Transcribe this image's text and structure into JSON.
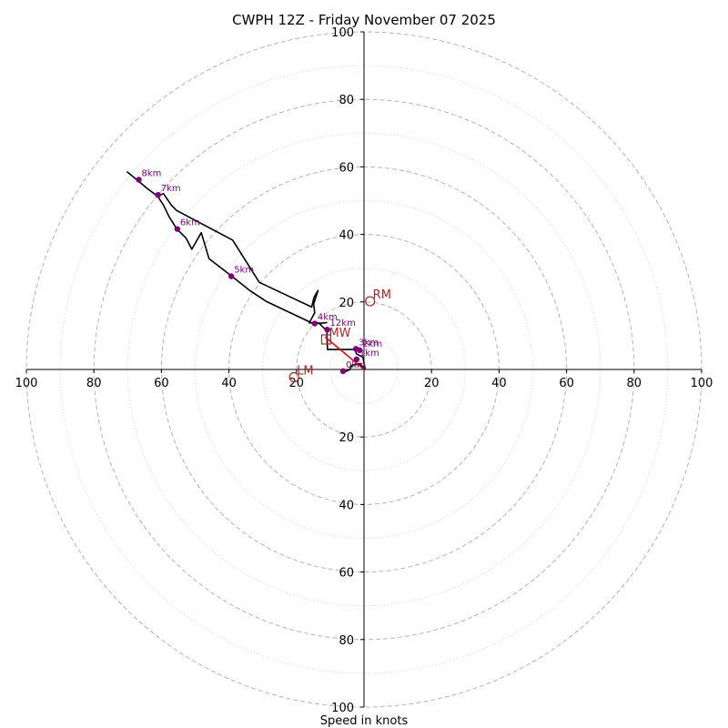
{
  "chart_data": {
    "type": "hodograph",
    "title": "CWPH 12Z - Friday November 07 2025",
    "xlabel": "Speed in knots",
    "units": "knots",
    "range": [
      -100,
      100
    ],
    "major_rings": [
      20,
      40,
      60,
      80,
      100
    ],
    "minor_rings": [
      10,
      30,
      50,
      70,
      90
    ],
    "x_ticks": [
      {
        "value": -100,
        "label": "100"
      },
      {
        "value": -80,
        "label": "80"
      },
      {
        "value": -60,
        "label": "60"
      },
      {
        "value": -40,
        "label": "40"
      },
      {
        "value": -20,
        "label": "20"
      },
      {
        "value": 20,
        "label": "20"
      },
      {
        "value": 40,
        "label": "40"
      },
      {
        "value": 60,
        "label": "60"
      },
      {
        "value": 80,
        "label": "80"
      },
      {
        "value": 100,
        "label": "100"
      }
    ],
    "y_ticks": [
      {
        "value": 100,
        "label": "100"
      },
      {
        "value": 80,
        "label": "80"
      },
      {
        "value": 60,
        "label": "60"
      },
      {
        "value": 40,
        "label": "40"
      },
      {
        "value": 20,
        "label": "20"
      },
      {
        "value": -20,
        "label": "20"
      },
      {
        "value": -40,
        "label": "40"
      },
      {
        "value": -60,
        "label": "60"
      },
      {
        "value": -80,
        "label": "80"
      },
      {
        "value": -100,
        "label": "100"
      }
    ],
    "trace": [
      [
        -6.2,
        -0.9
      ],
      [
        -4.3,
        -0.1
      ],
      [
        -3.5,
        1.3
      ],
      [
        -1.2,
        1.6
      ],
      [
        0.3,
        0.3
      ],
      [
        -0.3,
        3.6
      ],
      [
        -2.2,
        4.6
      ],
      [
        -2.7,
        5.9
      ],
      [
        -10.8,
        5.9
      ],
      [
        -11.0,
        10.2
      ],
      [
        -10.9,
        11.3
      ],
      [
        -13.4,
        13.8
      ],
      [
        -16.2,
        13.8
      ],
      [
        -14.6,
        16.8
      ],
      [
        -14.9,
        19.4
      ],
      [
        -13.6,
        23.4
      ],
      [
        -14.8,
        21.4
      ],
      [
        -15.5,
        18.5
      ],
      [
        -22.7,
        21.9
      ],
      [
        -31.0,
        25.8
      ],
      [
        -37.2,
        35.6
      ],
      [
        -38.9,
        38.3
      ],
      [
        -55.5,
        47.1
      ],
      [
        -57.1,
        48.7
      ],
      [
        -59.4,
        52.1
      ],
      [
        -61.1,
        51.3
      ],
      [
        -64.2,
        53.6
      ],
      [
        -67.8,
        56.6
      ],
      [
        -70.1,
        58.5
      ],
      [
        -67.8,
        56.6
      ],
      [
        -64.2,
        53.6
      ],
      [
        -61.1,
        51.3
      ],
      [
        -59.4,
        48.7
      ],
      [
        -57.7,
        45.2
      ],
      [
        -55.5,
        41.7
      ],
      [
        -52.7,
        38.9
      ],
      [
        -51.0,
        35.6
      ],
      [
        -48.2,
        40.5
      ],
      [
        -45.9,
        32.8
      ],
      [
        -39.0,
        27.5
      ],
      [
        -33.7,
        23.3
      ],
      [
        -29.0,
        20.2
      ],
      [
        -14.9,
        13.5
      ],
      [
        -10.9,
        13.9
      ]
    ],
    "height_points": [
      {
        "label": "0km",
        "u": -6.2,
        "v": -0.5
      },
      {
        "label": "1km",
        "u": -2.2,
        "v": 3.0
      },
      {
        "label": "2km",
        "u": -1.3,
        "v": 5.7
      },
      {
        "label": "3km",
        "u": -2.4,
        "v": 6.1
      },
      {
        "label": "4km",
        "u": -14.6,
        "v": 13.6
      },
      {
        "label": "5km",
        "u": -39.3,
        "v": 27.6
      },
      {
        "label": "6km",
        "u": -55.3,
        "v": 41.6
      },
      {
        "label": "7km",
        "u": -61.0,
        "v": 51.7
      },
      {
        "label": "8km",
        "u": -66.7,
        "v": 56.2
      },
      {
        "label": "12km",
        "u": -10.9,
        "v": 11.8
      }
    ],
    "shear_vector": {
      "from": [
        0,
        0
      ],
      "to": [
        -11.5,
        9.6
      ],
      "color": "#ff0000"
    },
    "storm_motions": [
      {
        "label": "RM",
        "u": 1.8,
        "v": 20.2,
        "mark": "circle"
      },
      {
        "label": "LM",
        "u": -20.7,
        "v": -2.3,
        "mark": "circle"
      },
      {
        "label": "MW",
        "u": -11.2,
        "v": 8.9,
        "mark": "square"
      }
    ],
    "colors": {
      "trace": "#000000",
      "height": "#800080",
      "shear": "#ff0000",
      "motion": "#b22222"
    }
  }
}
